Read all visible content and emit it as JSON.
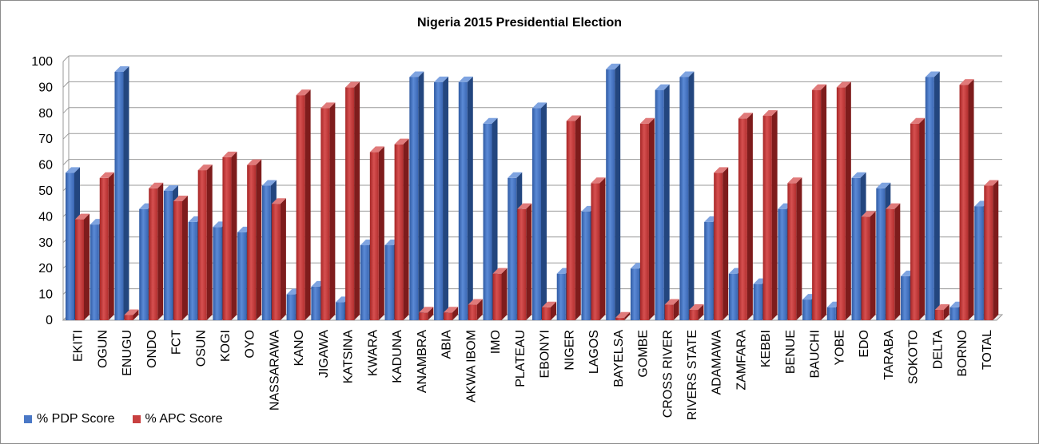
{
  "chart_data": {
    "type": "bar",
    "title": "Nigeria 2015 Presidential Election",
    "xlabel": "",
    "ylabel": "",
    "ylim": [
      0,
      100
    ],
    "yticks": [
      0,
      10,
      20,
      30,
      40,
      50,
      60,
      70,
      80,
      90,
      100
    ],
    "grid": true,
    "legend_position": "bottom-left",
    "categories": [
      "EKITI",
      "OGUN",
      "ENUGU",
      "ONDO",
      "FCT",
      "OSUN",
      "KOGI",
      "OYO",
      "NASSARAWA",
      "KANO",
      "JIGAWA",
      "KATSINA",
      "KWARA",
      "KADUNA",
      "ANAMBRA",
      "ABIA",
      "AKWA IBOM",
      "IMO",
      "PLATEAU",
      "EBONYI",
      "NIGER",
      "LAGOS",
      "BAYELSA",
      "GOMBE",
      "CROSS RIVER",
      "RIVERS STATE",
      "ADAMAWA",
      "ZAMFARA",
      "KEBBI",
      "BENUE",
      "BAUCHI",
      "YOBE",
      "EDO",
      "TARABA",
      "SOKOTO",
      "DELTA",
      "BORNO",
      "TOTAL"
    ],
    "series": [
      {
        "name": "% PDP Score",
        "color": "#4a78c6",
        "values": [
          57,
          37,
          96,
          43,
          50,
          38,
          36,
          34,
          52,
          10,
          13,
          7,
          29,
          29,
          94,
          92,
          92,
          76,
          55,
          82,
          18,
          42,
          97,
          20,
          89,
          94,
          38,
          18,
          14,
          43,
          8,
          5,
          55,
          51,
          17,
          94,
          5,
          44
        ]
      },
      {
        "name": "% APC Score",
        "color": "#c84040",
        "values": [
          39,
          55,
          2,
          51,
          46,
          58,
          63,
          60,
          45,
          87,
          82,
          90,
          65,
          68,
          3,
          3,
          6,
          18,
          43,
          5,
          77,
          53,
          1,
          76,
          6,
          4,
          57,
          78,
          79,
          53,
          89,
          90,
          40,
          43,
          76,
          4,
          91,
          52
        ]
      }
    ]
  }
}
